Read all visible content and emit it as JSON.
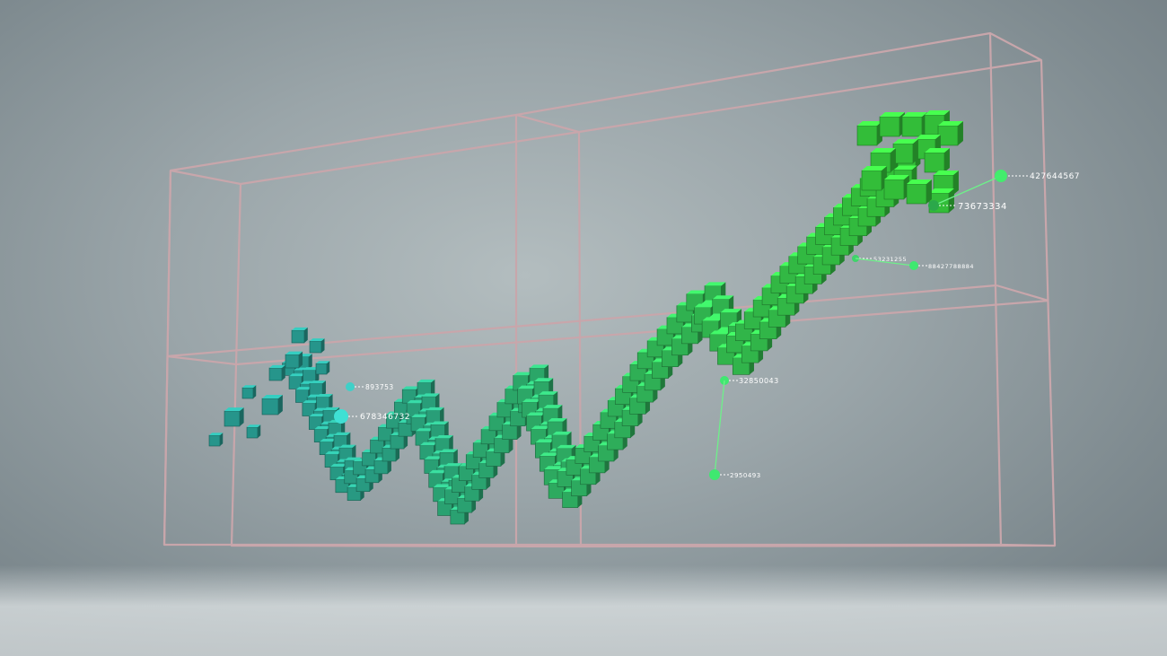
{
  "scene": {
    "background_color": "#9aa5a9",
    "frame_color": "#c8a6ab",
    "cube_colors": {
      "start": "#2aa59a",
      "end": "#39d23f"
    }
  },
  "callouts": [
    {
      "id": "c1",
      "label": "427644567",
      "dot_color": "#3ff06a"
    },
    {
      "id": "c2",
      "label": "73673334",
      "dot_color": "#2ba84a"
    },
    {
      "id": "c3",
      "label": "53231255",
      "dot_color": "#3fd46a"
    },
    {
      "id": "c4",
      "label": "88427788884",
      "dot_color": "#3fe870"
    },
    {
      "id": "c5",
      "label": "32850043",
      "dot_color": "#3fe870"
    },
    {
      "id": "c6",
      "label": "2950493",
      "dot_color": "#3fe870"
    },
    {
      "id": "c7",
      "label": "893753",
      "dot_color": "#3fd0c8"
    },
    {
      "id": "c8",
      "label": "678346732",
      "dot_color": "#3fe0d4"
    }
  ]
}
